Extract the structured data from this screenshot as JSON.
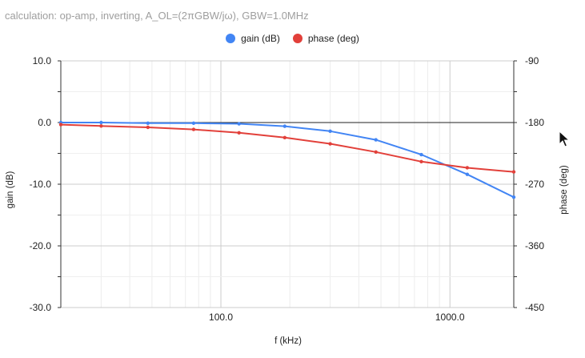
{
  "title": "calculation: op-amp, inverting, A_OL=(2πGBW/jω), GBW=1.0MHz",
  "colors": {
    "gain": "#4285f4",
    "phase": "#e2403a",
    "grid": "#e6e6e6",
    "zero": "#222222"
  },
  "cursor_icon": "arrow-pointer-icon",
  "chart_data": {
    "type": "line",
    "title": "calculation: op-amp, inverting, A_OL=(2πGBW/jω), GBW=1.0MHz",
    "xlabel": "f (kHz)",
    "ylabel": "gain (dB)",
    "y2label": "phase (deg)",
    "xscale": "log",
    "xlim": [
      20,
      1900
    ],
    "ylim": [
      -30,
      10
    ],
    "y2lim": [
      -450,
      -90
    ],
    "xticks": [
      100,
      1000
    ],
    "xtick_labels": [
      "100.0",
      "1000.0"
    ],
    "yticks": [
      10,
      0,
      -10,
      -20,
      -30
    ],
    "ytick_labels": [
      "10.0",
      "0.0",
      "-10.0",
      "-20.0",
      "-30.0"
    ],
    "y2ticks": [
      -90,
      -180,
      -270,
      -360,
      -450
    ],
    "y2tick_labels": [
      "-90",
      "-180",
      "-270",
      "-360",
      "-450"
    ],
    "grid": true,
    "legend_position": "top",
    "x": [
      20,
      30,
      48,
      76,
      120,
      190,
      300,
      475,
      750,
      1190,
      1900
    ],
    "series": [
      {
        "name": "gain (dB)",
        "axis": "left",
        "values": [
          0,
          0,
          -0.1,
          -0.1,
          -0.2,
          -0.6,
          -1.4,
          -2.8,
          -5.2,
          -8.4,
          -12.1
        ]
      },
      {
        "name": "phase (deg)",
        "axis": "right",
        "values": [
          -183,
          -185,
          -187,
          -190,
          -195,
          -202,
          -211,
          -223,
          -237,
          -246,
          -252
        ]
      }
    ]
  }
}
